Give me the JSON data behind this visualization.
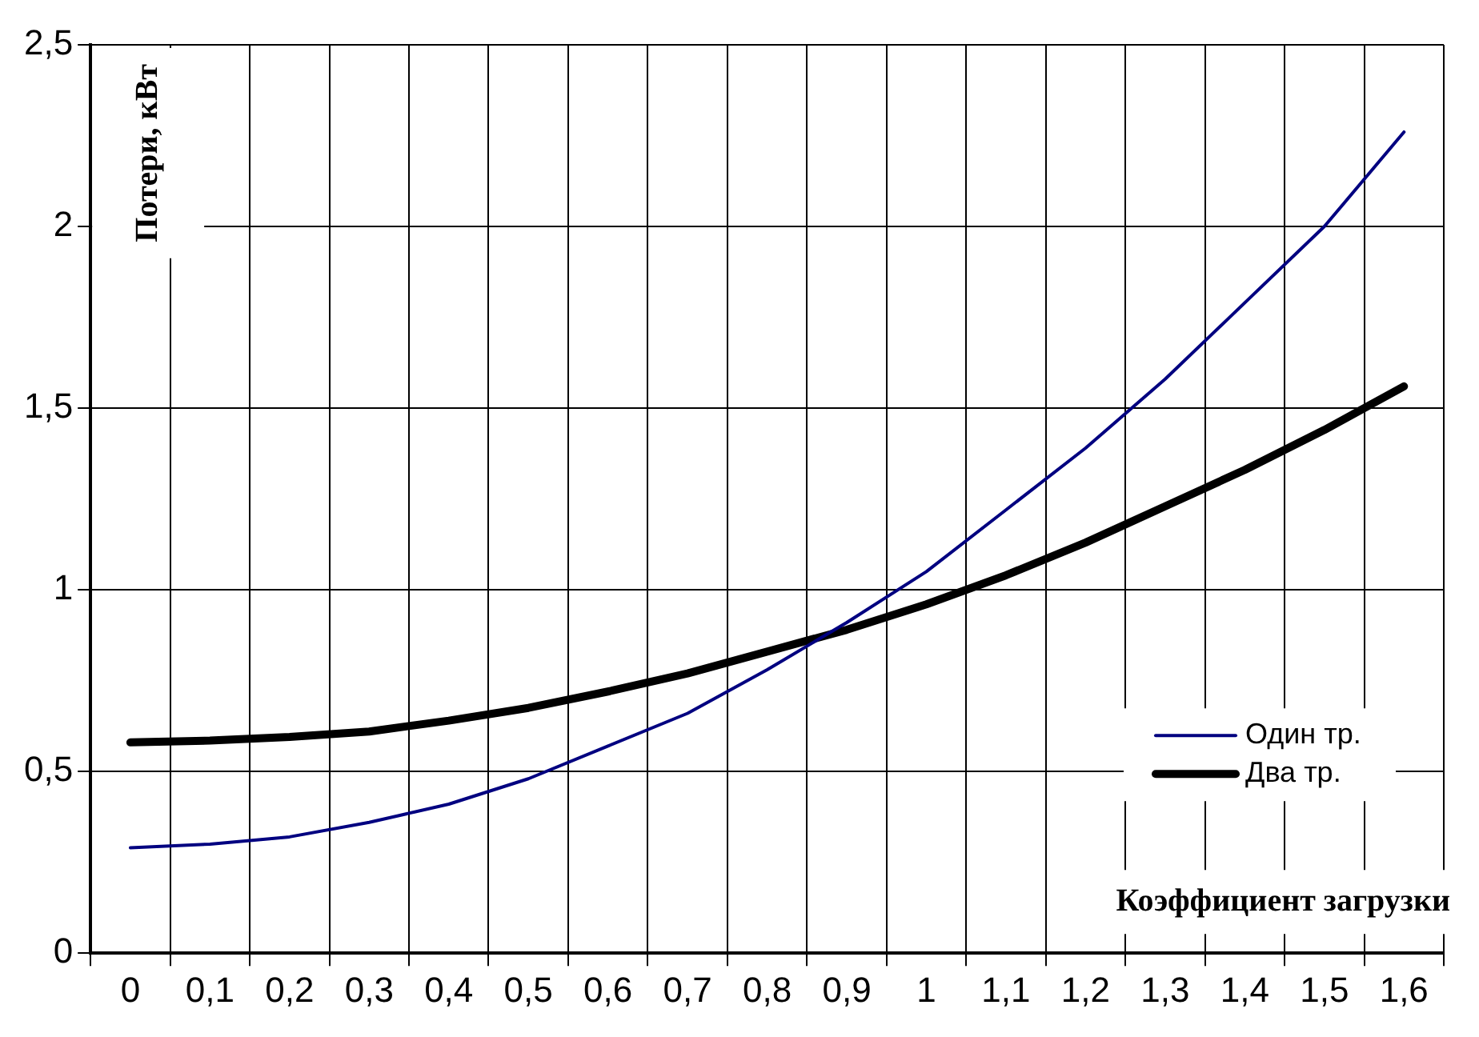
{
  "chart_data": {
    "type": "line",
    "xlabel": "Коэффициент загрузки",
    "ylabel": "Потери, кВт",
    "categories": [
      "0",
      "0,1",
      "0,2",
      "0,3",
      "0,4",
      "0,5",
      "0,6",
      "0,7",
      "0,8",
      "0,9",
      "1",
      "1,1",
      "1,2",
      "1,3",
      "1,4",
      "1,5",
      "1,6"
    ],
    "series": [
      {
        "name": "Один тр.",
        "color": "#000080",
        "values": [
          0.29,
          0.3,
          0.32,
          0.36,
          0.41,
          0.48,
          0.57,
          0.66,
          0.78,
          0.91,
          1.05,
          1.22,
          1.39,
          1.58,
          1.79,
          2.0,
          2.26
        ]
      },
      {
        "name": "Два тр.",
        "color": "#000000",
        "values": [
          0.58,
          0.585,
          0.595,
          0.61,
          0.64,
          0.675,
          0.72,
          0.77,
          0.83,
          0.89,
          0.96,
          1.04,
          1.13,
          1.23,
          1.33,
          1.44,
          1.56
        ]
      }
    ],
    "ylim": [
      0,
      2.5
    ],
    "yticks": [
      0,
      {
        "value": 0.5,
        "label": "0,5"
      },
      1,
      {
        "value": 1.5,
        "label": "1,5"
      },
      2,
      {
        "value": 2.5,
        "label": "2,5"
      }
    ],
    "grid": true,
    "legend": "bottom right",
    "marker": "none",
    "line_style": "solid"
  }
}
